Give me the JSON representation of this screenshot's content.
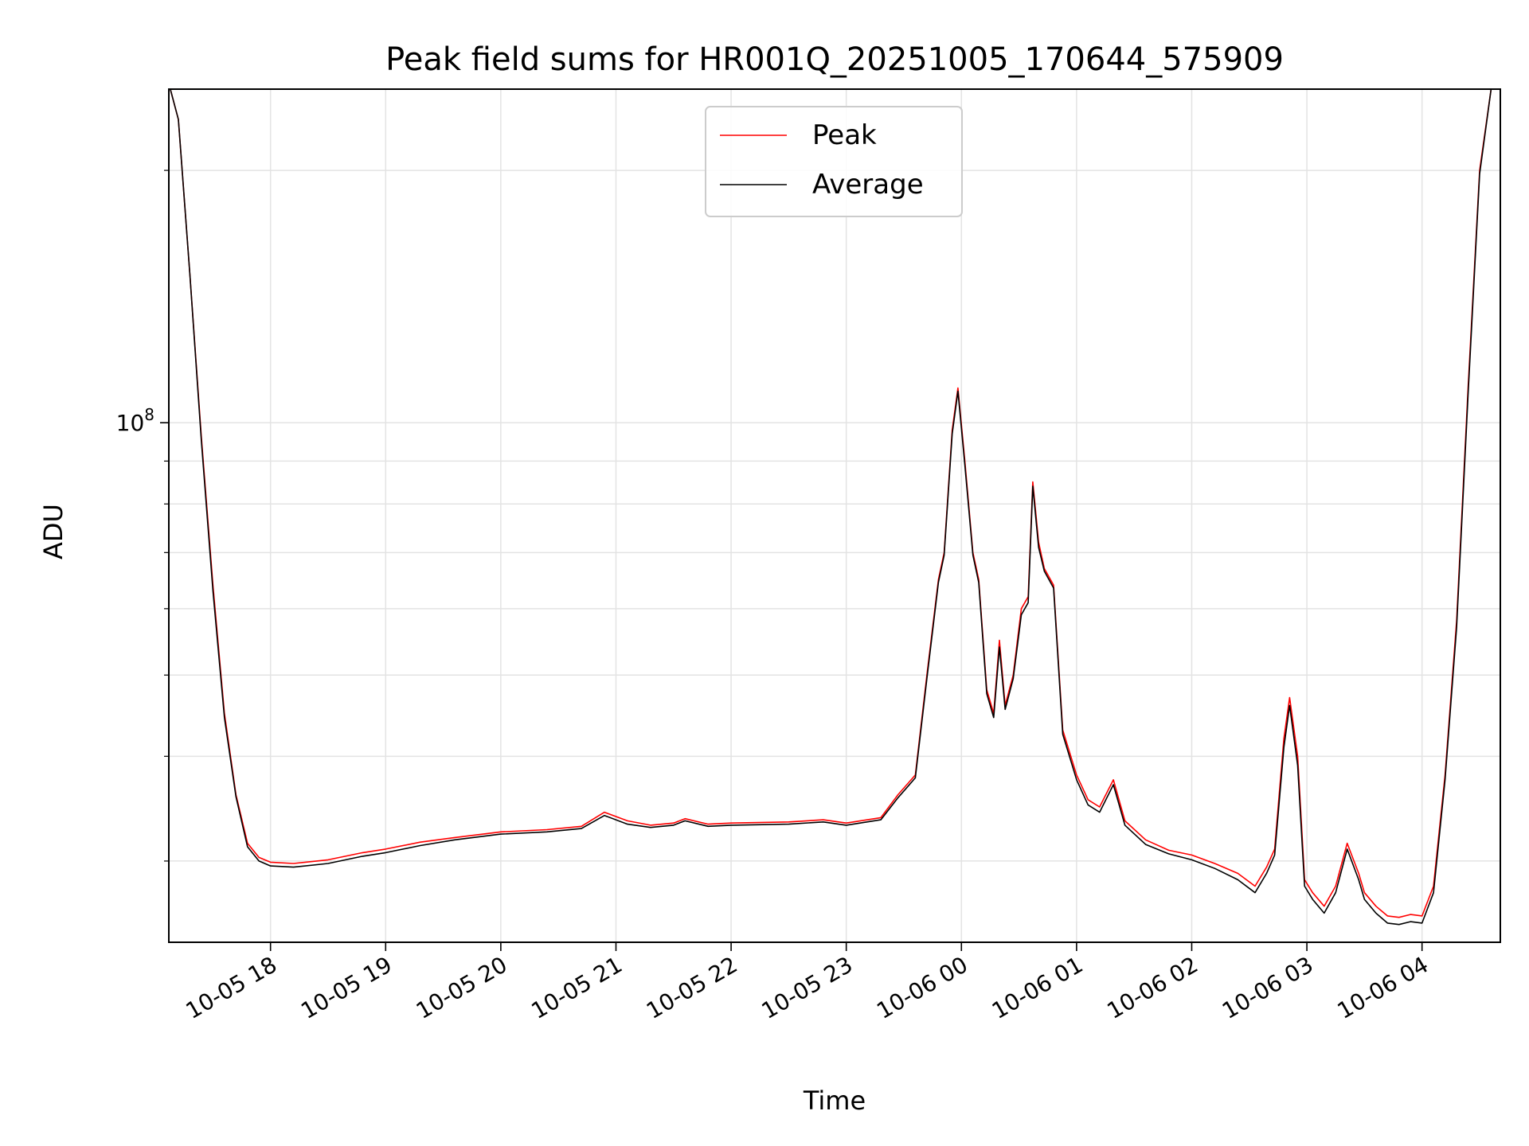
{
  "chart_data": {
    "type": "line",
    "title": "Peak field sums for HR001Q_20251005_170644_575909",
    "xlabel": "Time",
    "ylabel": "ADU",
    "y_scale": "log",
    "y_tick_label": {
      "base": "10",
      "exp": "8"
    },
    "ylim": [
      24000000,
      250000000
    ],
    "x_unit": "hours since 2025-10-05 17:00",
    "xlim": [
      0.117,
      11.68
    ],
    "x_ticks": [
      {
        "x": 1,
        "label": "10-05 18"
      },
      {
        "x": 2,
        "label": "10-05 19"
      },
      {
        "x": 3,
        "label": "10-05 20"
      },
      {
        "x": 4,
        "label": "10-05 21"
      },
      {
        "x": 5,
        "label": "10-05 22"
      },
      {
        "x": 6,
        "label": "10-05 23"
      },
      {
        "x": 7,
        "label": "10-06 00"
      },
      {
        "x": 8,
        "label": "10-06 01"
      },
      {
        "x": 9,
        "label": "10-06 02"
      },
      {
        "x": 10,
        "label": "10-06 03"
      },
      {
        "x": 11,
        "label": "10-06 04"
      }
    ],
    "y_major_ticks": [
      100000000
    ],
    "y_minor_ticks": [
      30000000,
      40000000,
      50000000,
      60000000,
      70000000,
      80000000,
      90000000,
      200000000
    ],
    "grid": true,
    "legend_position": "top-center",
    "series": [
      {
        "name": "Peak",
        "color": "#ff0000",
        "points": [
          [
            0.13,
            250000000
          ],
          [
            0.2,
            230000000
          ],
          [
            0.3,
            150000000
          ],
          [
            0.4,
            96000000
          ],
          [
            0.5,
            64000000
          ],
          [
            0.6,
            45000000
          ],
          [
            0.7,
            36000000
          ],
          [
            0.8,
            31500000
          ],
          [
            0.9,
            30300000
          ],
          [
            1.0,
            29900000
          ],
          [
            1.2,
            29800000
          ],
          [
            1.5,
            30100000
          ],
          [
            1.8,
            30700000
          ],
          [
            2.0,
            31000000
          ],
          [
            2.3,
            31600000
          ],
          [
            2.6,
            32000000
          ],
          [
            3.0,
            32500000
          ],
          [
            3.4,
            32700000
          ],
          [
            3.7,
            33000000
          ],
          [
            3.9,
            34300000
          ],
          [
            4.1,
            33500000
          ],
          [
            4.3,
            33100000
          ],
          [
            4.5,
            33300000
          ],
          [
            4.6,
            33700000
          ],
          [
            4.8,
            33200000
          ],
          [
            5.0,
            33300000
          ],
          [
            5.5,
            33400000
          ],
          [
            5.8,
            33600000
          ],
          [
            6.0,
            33300000
          ],
          [
            6.3,
            33800000
          ],
          [
            6.45,
            36000000
          ],
          [
            6.6,
            38000000
          ],
          [
            6.7,
            50000000
          ],
          [
            6.8,
            65000000
          ],
          [
            6.85,
            70000000
          ],
          [
            6.92,
            98000000
          ],
          [
            6.97,
            110000000
          ],
          [
            7.03,
            90000000
          ],
          [
            7.1,
            70000000
          ],
          [
            7.15,
            65000000
          ],
          [
            7.22,
            48000000
          ],
          [
            7.28,
            45000000
          ],
          [
            7.33,
            55000000
          ],
          [
            7.38,
            46000000
          ],
          [
            7.45,
            50000000
          ],
          [
            7.52,
            60000000
          ],
          [
            7.58,
            62000000
          ],
          [
            7.62,
            85000000
          ],
          [
            7.67,
            72000000
          ],
          [
            7.72,
            67000000
          ],
          [
            7.8,
            64000000
          ],
          [
            7.88,
            43000000
          ],
          [
            8.0,
            38000000
          ],
          [
            8.1,
            35500000
          ],
          [
            8.2,
            34800000
          ],
          [
            8.32,
            37500000
          ],
          [
            8.42,
            33500000
          ],
          [
            8.6,
            31800000
          ],
          [
            8.8,
            30900000
          ],
          [
            9.0,
            30500000
          ],
          [
            9.2,
            29800000
          ],
          [
            9.4,
            29000000
          ],
          [
            9.55,
            28000000
          ],
          [
            9.65,
            29500000
          ],
          [
            9.72,
            31000000
          ],
          [
            9.8,
            42000000
          ],
          [
            9.85,
            47000000
          ],
          [
            9.92,
            40000000
          ],
          [
            9.98,
            28500000
          ],
          [
            10.05,
            27500000
          ],
          [
            10.15,
            26500000
          ],
          [
            10.25,
            28000000
          ],
          [
            10.35,
            31500000
          ],
          [
            10.45,
            29000000
          ],
          [
            10.5,
            27500000
          ],
          [
            10.6,
            26500000
          ],
          [
            10.7,
            25800000
          ],
          [
            10.8,
            25700000
          ],
          [
            10.9,
            25900000
          ],
          [
            11.0,
            25800000
          ],
          [
            11.1,
            28000000
          ],
          [
            11.2,
            38000000
          ],
          [
            11.3,
            58000000
          ],
          [
            11.4,
            110000000
          ],
          [
            11.5,
            200000000
          ],
          [
            11.6,
            250000000
          ],
          [
            11.68,
            250000000
          ]
        ]
      },
      {
        "name": "Average",
        "color": "#000000",
        "points": [
          [
            0.13,
            250000000
          ],
          [
            0.2,
            230000000
          ],
          [
            0.3,
            150000000
          ],
          [
            0.4,
            95000000
          ],
          [
            0.5,
            63000000
          ],
          [
            0.6,
            44500000
          ],
          [
            0.7,
            35800000
          ],
          [
            0.8,
            31200000
          ],
          [
            0.9,
            30000000
          ],
          [
            1.0,
            29600000
          ],
          [
            1.2,
            29500000
          ],
          [
            1.5,
            29800000
          ],
          [
            1.8,
            30400000
          ],
          [
            2.0,
            30700000
          ],
          [
            2.3,
            31300000
          ],
          [
            2.6,
            31800000
          ],
          [
            3.0,
            32300000
          ],
          [
            3.4,
            32500000
          ],
          [
            3.7,
            32800000
          ],
          [
            3.9,
            34000000
          ],
          [
            4.1,
            33200000
          ],
          [
            4.3,
            32900000
          ],
          [
            4.5,
            33100000
          ],
          [
            4.6,
            33500000
          ],
          [
            4.8,
            33000000
          ],
          [
            5.0,
            33100000
          ],
          [
            5.5,
            33200000
          ],
          [
            5.8,
            33400000
          ],
          [
            6.0,
            33100000
          ],
          [
            6.3,
            33600000
          ],
          [
            6.45,
            35700000
          ],
          [
            6.6,
            37700000
          ],
          [
            6.7,
            49500000
          ],
          [
            6.8,
            64500000
          ],
          [
            6.85,
            69500000
          ],
          [
            6.92,
            97000000
          ],
          [
            6.97,
            109000000
          ],
          [
            7.03,
            89000000
          ],
          [
            7.1,
            69500000
          ],
          [
            7.15,
            64500000
          ],
          [
            7.22,
            47500000
          ],
          [
            7.28,
            44500000
          ],
          [
            7.33,
            54000000
          ],
          [
            7.38,
            45500000
          ],
          [
            7.45,
            49500000
          ],
          [
            7.52,
            59000000
          ],
          [
            7.58,
            61000000
          ],
          [
            7.62,
            84000000
          ],
          [
            7.67,
            71000000
          ],
          [
            7.72,
            66500000
          ],
          [
            7.8,
            63500000
          ],
          [
            7.88,
            42500000
          ],
          [
            8.0,
            37500000
          ],
          [
            8.1,
            35000000
          ],
          [
            8.2,
            34300000
          ],
          [
            8.32,
            37000000
          ],
          [
            8.42,
            33100000
          ],
          [
            8.6,
            31400000
          ],
          [
            8.8,
            30600000
          ],
          [
            9.0,
            30100000
          ],
          [
            9.2,
            29400000
          ],
          [
            9.4,
            28500000
          ],
          [
            9.55,
            27500000
          ],
          [
            9.65,
            29000000
          ],
          [
            9.72,
            30500000
          ],
          [
            9.8,
            41000000
          ],
          [
            9.85,
            46000000
          ],
          [
            9.92,
            39000000
          ],
          [
            9.98,
            28000000
          ],
          [
            10.05,
            27000000
          ],
          [
            10.15,
            26000000
          ],
          [
            10.25,
            27500000
          ],
          [
            10.35,
            31000000
          ],
          [
            10.45,
            28500000
          ],
          [
            10.5,
            27000000
          ],
          [
            10.6,
            26000000
          ],
          [
            10.7,
            25300000
          ],
          [
            10.8,
            25200000
          ],
          [
            10.9,
            25400000
          ],
          [
            11.0,
            25300000
          ],
          [
            11.1,
            27500000
          ],
          [
            11.2,
            37500000
          ],
          [
            11.3,
            57000000
          ],
          [
            11.4,
            108000000
          ],
          [
            11.5,
            198000000
          ],
          [
            11.6,
            250000000
          ],
          [
            11.68,
            250000000
          ]
        ]
      }
    ]
  }
}
